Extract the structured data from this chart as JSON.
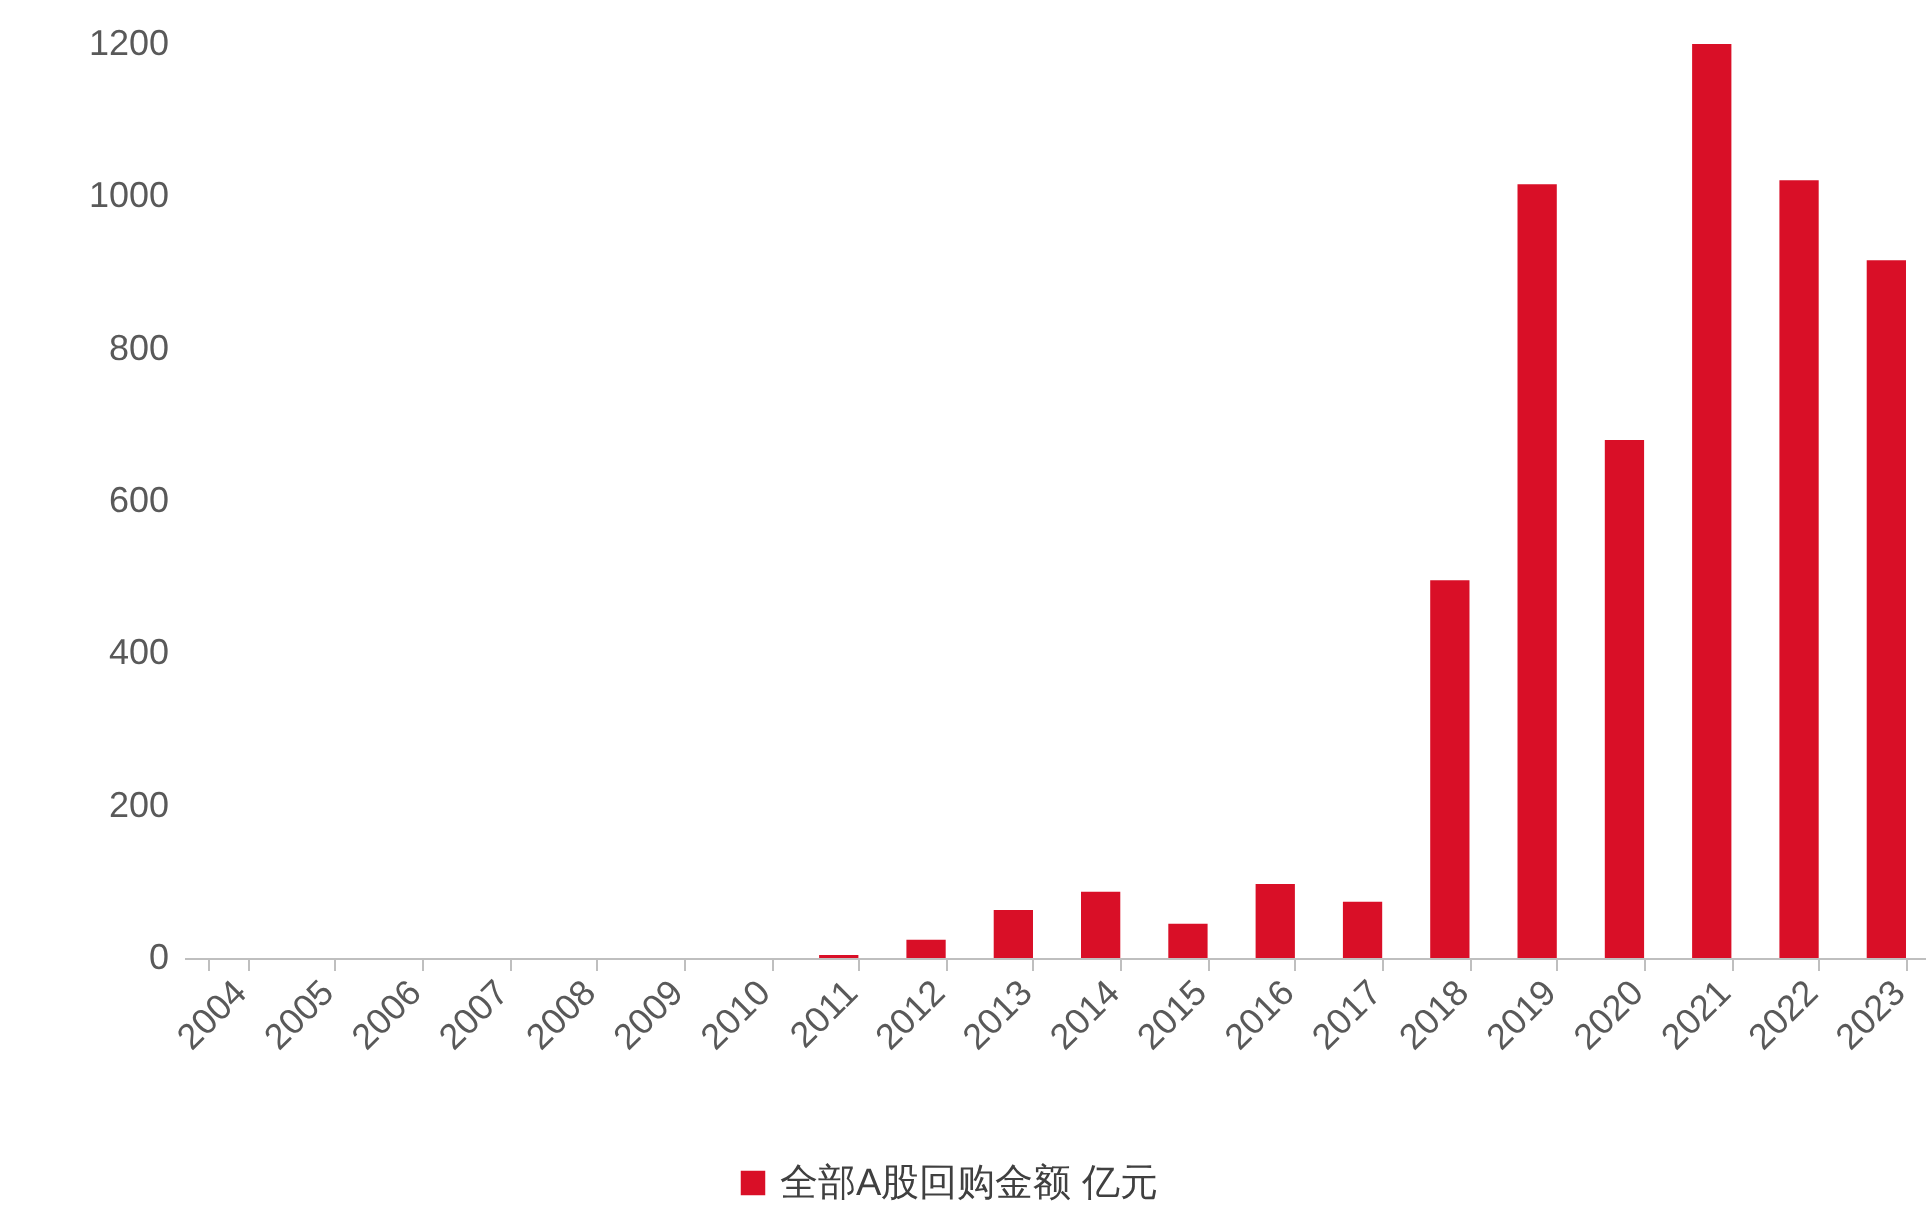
{
  "chart_data": {
    "type": "bar",
    "categories": [
      "2004",
      "2005",
      "2006",
      "2007",
      "2008",
      "2009",
      "2010",
      "2011",
      "2012",
      "2013",
      "2014",
      "2015",
      "2016",
      "2017",
      "2018",
      "2019",
      "2020",
      "2021",
      "2022",
      "2023"
    ],
    "series": [
      {
        "name": "全部A股回购金额 亿元",
        "color": "#d90f27",
        "values": [
          0,
          0,
          0,
          0,
          0,
          0,
          0,
          4,
          24,
          63,
          87,
          45,
          97,
          74,
          496,
          1016,
          680,
          1200,
          1021,
          916
        ]
      }
    ],
    "ylim": [
      0,
      1200
    ],
    "yticks": [
      0,
      200,
      400,
      600,
      800,
      1000,
      1200
    ],
    "grid": false,
    "legend": "bottom"
  }
}
